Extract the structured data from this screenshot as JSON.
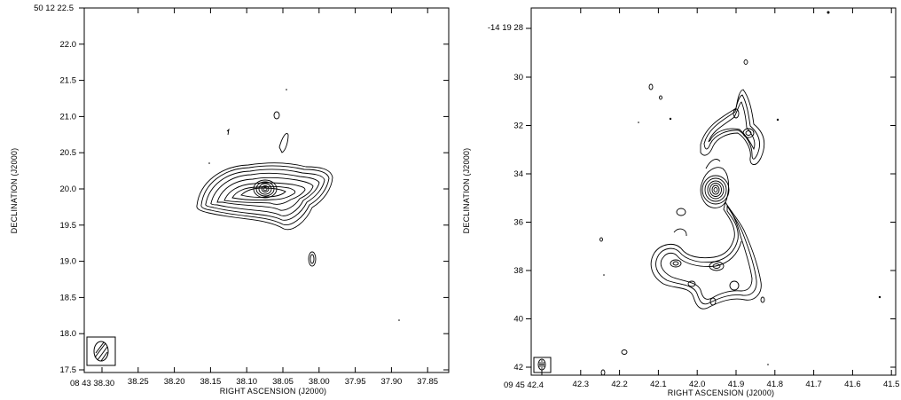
{
  "chart_data": [
    {
      "type": "contour",
      "xlabel": "RIGHT ASCENSION (J2000)",
      "ylabel": "DECLINATION (J2000)",
      "x_first_label": "08 43 38.30",
      "x_ticks": [
        "38.25",
        "38.20",
        "38.15",
        "38.10",
        "38.05",
        "38.00",
        "37.95",
        "37.90",
        "37.85"
      ],
      "y_first_label": "50 12 22.5",
      "y_ticks": [
        "22.0",
        "21.5",
        "21.0",
        "20.5",
        "20.0",
        "19.5",
        "19.0",
        "18.5",
        "18.0",
        "17.5"
      ],
      "beam_box": true
    },
    {
      "type": "contour",
      "xlabel": "RIGHT ASCENSION (J2000)",
      "ylabel": "DECLINATION (J2000)",
      "x_first_label": "09 45 42.4",
      "x_ticks": [
        "42.3",
        "42.2",
        "42.1",
        "42.0",
        "41.9",
        "41.8",
        "41.7",
        "41.6",
        "41.5"
      ],
      "y_first_label": "-14 19 28",
      "y_ticks": [
        "30",
        "32",
        "34",
        "36",
        "38",
        "40",
        "42"
      ],
      "beam_box": true
    }
  ]
}
